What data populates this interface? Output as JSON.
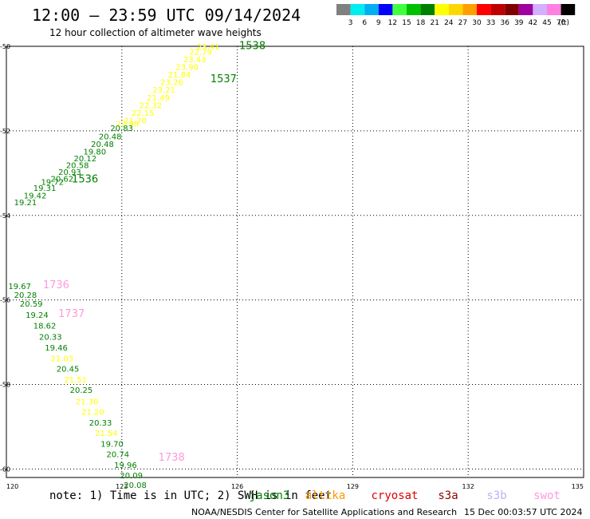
{
  "header": {
    "title": "12:00 – 23:59 UTC 09/14/2024",
    "subtitle": "12 hour collection of altimeter wave heights"
  },
  "legend_scale": {
    "colors": [
      "#808080",
      "#00eeee",
      "#00b0f0",
      "#0000ff",
      "#40ff40",
      "#00c000",
      "#008000",
      "#ffff00",
      "#ffd700",
      "#ffa000",
      "#ff0000",
      "#c00000",
      "#800000",
      "#a000a0",
      "#d0b0ff",
      "#ff80e0",
      "#000000"
    ],
    "labels": [
      "3",
      "6",
      "9",
      "12",
      "15",
      "18",
      "21",
      "24",
      "27",
      "30",
      "33",
      "36",
      "39",
      "42",
      "45",
      "70"
    ],
    "unit": "(ft)"
  },
  "footer": {
    "note": "note: 1) Time is in UTC; 2) SWH is in feet",
    "credit": "NOAA/NESDIS Center for Satellite Applications and Research",
    "timestamp": "15 Dec 00:03:57 UTC 2024"
  },
  "satellites": [
    {
      "name": "jason3",
      "color": "#008000"
    },
    {
      "name": "altika",
      "color": "#ff9900"
    },
    {
      "name": "cryosat",
      "color": "#e00000"
    },
    {
      "name": "s3a",
      "color": "#900000"
    },
    {
      "name": "s3b",
      "color": "#c0b0f0"
    },
    {
      "name": "swot",
      "color": "#ff99dd"
    }
  ],
  "chart_data": {
    "type": "scatter",
    "title": "12:00 – 23:59 UTC 09/14/2024",
    "subtitle": "12 hour collection of altimeter wave heights",
    "xlim": [
      120,
      135
    ],
    "ylim": [
      -60.2,
      -50
    ],
    "x_ticks": [
      "120",
      "123",
      "126",
      "129",
      "132",
      "135"
    ],
    "y_ticks": [
      "-50",
      "-52",
      "-54",
      "-56",
      "-58",
      "-60"
    ],
    "x_tick_values": [
      120,
      123,
      126,
      129,
      132,
      135
    ],
    "y_tick_values": [
      -50,
      -52,
      -54,
      -56,
      -58,
      -60
    ],
    "grid": true,
    "pass_labels": [
      {
        "text": "1538",
        "x": 126.05,
        "y": -50.07,
        "color": "#008000"
      },
      {
        "text": "1537",
        "x": 125.3,
        "y": -50.85,
        "color": "#008000"
      },
      {
        "text": "1536",
        "x": 121.7,
        "y": -53.22,
        "color": "#008000"
      },
      {
        "text": "1736",
        "x": 120.95,
        "y": -55.72,
        "color": "#ff99dd"
      },
      {
        "text": "1737",
        "x": 121.35,
        "y": -56.4,
        "color": "#ff99dd"
      },
      {
        "text": "1738",
        "x": 123.95,
        "y": -59.8,
        "color": "#ff99dd"
      }
    ],
    "points": [
      {
        "v": "23.41",
        "x": 124.95,
        "y": -50.08,
        "c": "#ffff00"
      },
      {
        "v": "22.79",
        "x": 124.75,
        "y": -50.2,
        "c": "#ffff00"
      },
      {
        "v": "23.43",
        "x": 124.6,
        "y": -50.38,
        "c": "#ffff00"
      },
      {
        "v": "23.90",
        "x": 124.4,
        "y": -50.56,
        "c": "#ffff00"
      },
      {
        "v": "21.84",
        "x": 124.2,
        "y": -50.74,
        "c": "#ffff00"
      },
      {
        "v": "23.26",
        "x": 124.0,
        "y": -50.92,
        "c": "#ffff00"
      },
      {
        "v": "23.21",
        "x": 123.8,
        "y": -51.1,
        "c": "#ffff00"
      },
      {
        "v": "21.49",
        "x": 123.65,
        "y": -51.28,
        "c": "#ffff00"
      },
      {
        "v": "22.32",
        "x": 123.45,
        "y": -51.46,
        "c": "#ffff00"
      },
      {
        "v": "22.15",
        "x": 123.25,
        "y": -51.64,
        "c": "#ffff00"
      },
      {
        "v": "21.70",
        "x": 123.05,
        "y": -51.82,
        "c": "#ffff00"
      },
      {
        "v": "22.98",
        "x": 122.85,
        "y": -51.9,
        "c": "#ffff00"
      },
      {
        "v": "20.83",
        "x": 122.7,
        "y": -52.0,
        "c": "#008000"
      },
      {
        "v": "20.48",
        "x": 122.4,
        "y": -52.2,
        "c": "#008000"
      },
      {
        "v": "20.48",
        "x": 122.2,
        "y": -52.38,
        "c": "#008000"
      },
      {
        "v": "19.80",
        "x": 122.0,
        "y": -52.56,
        "c": "#008000"
      },
      {
        "v": "20.12",
        "x": 121.75,
        "y": -52.72,
        "c": "#008000"
      },
      {
        "v": "20.58",
        "x": 121.55,
        "y": -52.88,
        "c": "#008000"
      },
      {
        "v": "20.93",
        "x": 121.35,
        "y": -53.04,
        "c": "#008000"
      },
      {
        "v": "20.62",
        "x": 121.15,
        "y": -53.2,
        "c": "#008000"
      },
      {
        "v": "19.72",
        "x": 120.9,
        "y": -53.28,
        "c": "#008000"
      },
      {
        "v": "19.31",
        "x": 120.7,
        "y": -53.42,
        "c": "#008000"
      },
      {
        "v": "19.42",
        "x": 120.45,
        "y": -53.6,
        "c": "#008000"
      },
      {
        "v": "19.21",
        "x": 120.2,
        "y": -53.76,
        "c": "#008000"
      },
      {
        "v": "19.67",
        "x": 120.05,
        "y": -55.74,
        "c": "#008000"
      },
      {
        "v": "20.28",
        "x": 120.2,
        "y": -55.95,
        "c": "#008000"
      },
      {
        "v": "20.59",
        "x": 120.35,
        "y": -56.16,
        "c": "#008000"
      },
      {
        "v": "19.24",
        "x": 120.5,
        "y": -56.42,
        "c": "#008000"
      },
      {
        "v": "18.62",
        "x": 120.7,
        "y": -56.68,
        "c": "#008000"
      },
      {
        "v": "20.33",
        "x": 120.85,
        "y": -56.94,
        "c": "#008000"
      },
      {
        "v": "19.46",
        "x": 121.0,
        "y": -57.2,
        "c": "#008000"
      },
      {
        "v": "21.03",
        "x": 121.15,
        "y": -57.45,
        "c": "#ffff00"
      },
      {
        "v": "20.45",
        "x": 121.3,
        "y": -57.7,
        "c": "#008000"
      },
      {
        "v": "21.51",
        "x": 121.5,
        "y": -57.95,
        "c": "#ffff00"
      },
      {
        "v": "20.25",
        "x": 121.65,
        "y": -58.2,
        "c": "#008000"
      },
      {
        "v": "21.30",
        "x": 121.8,
        "y": -58.47,
        "c": "#ffff00"
      },
      {
        "v": "21.20",
        "x": 121.95,
        "y": -58.72,
        "c": "#ffff00"
      },
      {
        "v": "20.33",
        "x": 122.15,
        "y": -58.97,
        "c": "#008000"
      },
      {
        "v": "21.54",
        "x": 122.3,
        "y": -59.22,
        "c": "#ffff00"
      },
      {
        "v": "19.70",
        "x": 122.45,
        "y": -59.47,
        "c": "#008000"
      },
      {
        "v": "20.74",
        "x": 122.6,
        "y": -59.72,
        "c": "#008000"
      },
      {
        "v": "19.96",
        "x": 122.8,
        "y": -59.97,
        "c": "#008000"
      },
      {
        "v": "20.09",
        "x": 122.95,
        "y": -60.22,
        "c": "#008000"
      },
      {
        "v": "20.08",
        "x": 123.05,
        "y": -60.45,
        "c": "#008000"
      }
    ]
  }
}
